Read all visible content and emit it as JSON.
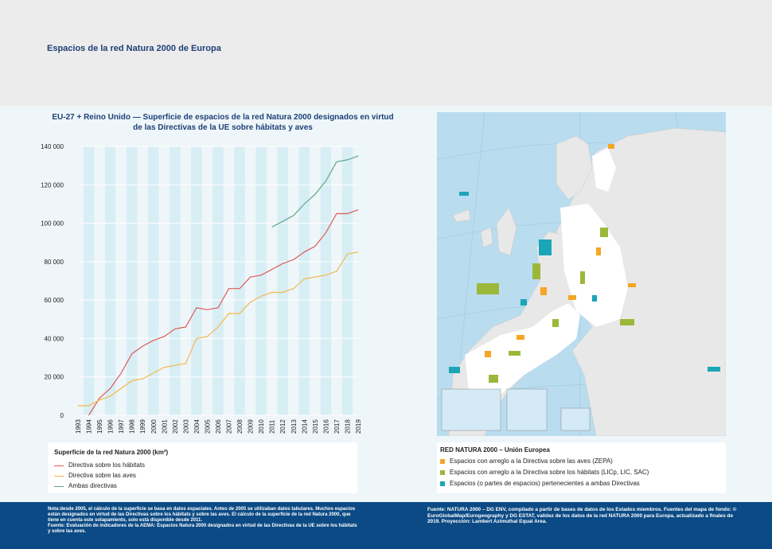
{
  "header": {
    "title": "Espacios de la red Natura 2000 de Europa"
  },
  "chart_data": {
    "type": "line",
    "title": "EU-27 + Reino Unido — Superficie de espacios de la red Natura 2000 designados en virtud de las Directivas de la UE sobre hábitats y aves",
    "x": [
      "1993",
      "1994",
      "1995",
      "1996",
      "1997",
      "1998",
      "1999",
      "2000",
      "2001",
      "2002",
      "2003",
      "2004",
      "2005",
      "2006",
      "2007",
      "2008",
      "2009",
      "2010",
      "2011",
      "2012",
      "2013",
      "2014",
      "2015",
      "2016",
      "2017",
      "2018",
      "2019"
    ],
    "yticks": [
      "0",
      "20 000",
      "40 000",
      "60 000",
      "80 000",
      "100 000",
      "120 000",
      "140 000"
    ],
    "ylim": [
      0,
      140000
    ],
    "grid": "alternating vertical bands",
    "series": [
      {
        "name": "Directiva sobre los hábitats",
        "color": "#e05a5a",
        "values": [
          null,
          0,
          9000,
          14000,
          22000,
          32000,
          36000,
          39000,
          41000,
          45000,
          46000,
          56000,
          55000,
          56000,
          66000,
          66000,
          72000,
          73000,
          76000,
          79000,
          81000,
          85000,
          88000,
          95000,
          105000,
          105000,
          107000
        ]
      },
      {
        "name": "Directiva sobre las aves",
        "color": "#f3b84b",
        "values": [
          5000,
          5000,
          8000,
          10000,
          14000,
          18000,
          19000,
          22000,
          25000,
          26000,
          27000,
          40000,
          41000,
          46000,
          53000,
          53000,
          59000,
          62000,
          64000,
          64000,
          66000,
          71000,
          72000,
          73000,
          75000,
          84000,
          85000
        ]
      },
      {
        "name": "Ambas directivas",
        "color": "#5fa78a",
        "values": [
          null,
          null,
          null,
          null,
          null,
          null,
          null,
          null,
          null,
          null,
          null,
          null,
          null,
          null,
          null,
          null,
          null,
          null,
          98000,
          101000,
          104000,
          110000,
          115000,
          122000,
          132000,
          133000,
          135000
        ]
      }
    ],
    "legend_title": "Superficie de la red Natura 2000 (km²)",
    "legend_position": "bottom"
  },
  "map": {
    "legend_title": "RED NATURA 2000 – Unión Europea",
    "items": [
      {
        "label": "Espacios con arreglo a la Directiva sobre las aves (ZEPA)",
        "color": "#f5a623"
      },
      {
        "label": "Espacios con arreglo a la Directiva sobre los hábitats (LICp, LIC, SAC)",
        "color": "#9cb83a"
      },
      {
        "label": "Espacios (o partes de espacios) pertenecientes a ambas Directivas",
        "color": "#1aa6b7"
      }
    ]
  },
  "footer": {
    "note": "Nota:desde 2005, el cálculo de la superficie se basa en datos espaciales. Antes de 2005 se utilizaban datos tabulares. Muchos espacios están designados en virtud de las Directivas sobre los hábitats y sobre las aves. El cálculo de la superficie de la red Natura 2000, que tiene en cuenta este solapamiento, solo está disponible desde 2011.",
    "source_left": "Fuente: Evaluación de indicadores de la AEMA: Espacios Natura 2000 designados en virtud de las Directivas de la UE sobre los hábitats y sobre las aves.",
    "source_right": "Fuente: NATURA 2000 – DG ENV, compilado a partir de bases de datos de los Estados miembros. Fuentes del mapa de fondo: © EuroGlobalMap/Eurogeography y DG ESTAT, validez de los datos de la red NATURA 2000 para Europa, actualizado a finales de 2019. Proyección: Lambert Azimuthal Equal Area."
  }
}
